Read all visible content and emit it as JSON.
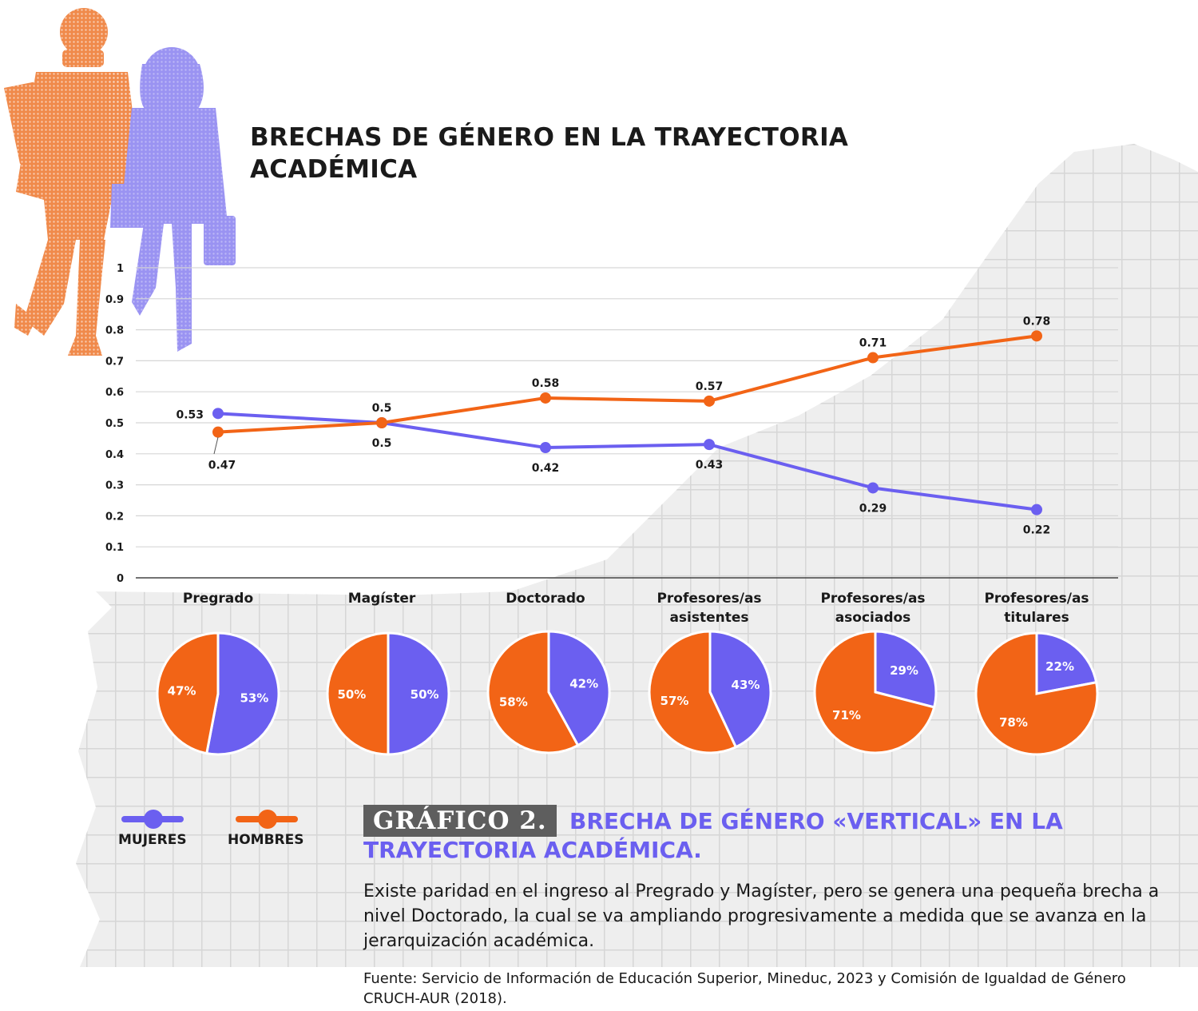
{
  "title": "BRECHAS DE GÉNERO EN LA TRAYECTORIA ACADÉMICA",
  "colors": {
    "mujeres": "#6b5ff0",
    "hombres": "#f26416",
    "grid": "#d6d6d6",
    "axis": "#1a1a1a"
  },
  "chart_data": [
    {
      "type": "line",
      "categories": [
        "Pregrado",
        "Magíster",
        "Doctorado",
        "Profesores/as asistentes",
        "Profesores/as asociados",
        "Profesores/as titulares"
      ],
      "ylim": [
        0,
        1
      ],
      "yticks": [
        "0",
        "0.1",
        "0.2",
        "0.3",
        "0.4",
        "0.5",
        "0.6",
        "0.7",
        "0.8",
        "0.9",
        "1"
      ],
      "grid": true,
      "series": [
        {
          "name": "MUJERES",
          "values": [
            0.53,
            0.5,
            0.42,
            0.43,
            0.29,
            0.22
          ],
          "labels": [
            "0.53",
            "0.5",
            "0.42",
            "0.43",
            "0.29",
            "0.22"
          ]
        },
        {
          "name": "HOMBRES",
          "values": [
            0.47,
            0.5,
            0.58,
            0.57,
            0.71,
            0.78
          ],
          "labels": [
            "0.47",
            "0.5",
            "0.58",
            "0.57",
            "0.71",
            "0.78"
          ]
        }
      ]
    },
    {
      "type": "pie",
      "categories": [
        "Pregrado",
        "Magíster",
        "Doctorado",
        "Profesores/as asistentes",
        "Profesores/as asociados",
        "Profesores/as titulares"
      ],
      "series": [
        {
          "name": "MUJERES",
          "values": [
            53,
            50,
            42,
            43,
            29,
            22
          ],
          "labels": [
            "53%",
            "50%",
            "42%",
            "43%",
            "29%",
            "22%"
          ]
        },
        {
          "name": "HOMBRES",
          "values": [
            47,
            50,
            58,
            57,
            71,
            78
          ],
          "labels": [
            "47%",
            "50%",
            "58%",
            "57%",
            "71%",
            "78%"
          ]
        }
      ]
    }
  ],
  "legend": {
    "mujeres": "MUJERES",
    "hombres": "HOMBRES"
  },
  "figure": {
    "badge": "GRÁFICO 2.",
    "subtitle": "BRECHA DE GÉNERO «VERTICAL» EN LA TRAYECTORIA ACADÉMICA.",
    "description": "Existe paridad en el ingreso al Pregrado y Magíster, pero se genera una pequeña brecha a nivel Doctorado, la cual se va ampliando progresivamente a medida que se avanza en la jerarquización académica.",
    "source": "Fuente: Servicio de Información de Educación Superior, Mineduc, 2023 y Comisión de Igualdad de Género CRUCH-AUR (2018)."
  }
}
